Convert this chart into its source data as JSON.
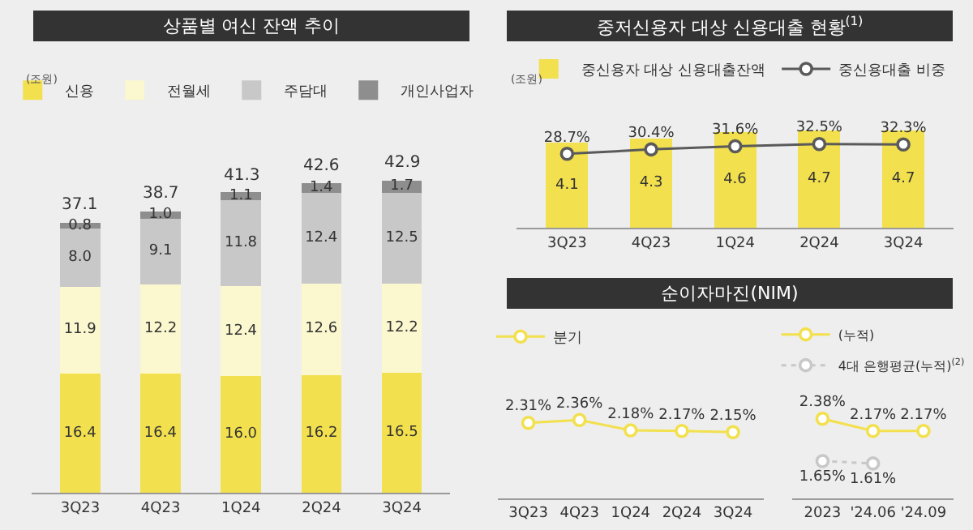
{
  "chart_data": [
    {
      "type": "bar",
      "title": "상품별 여신 잔액 추이",
      "ylabel": "(조원)",
      "stacked": true,
      "legend": "top",
      "tick_labels": "x",
      "categories": [
        "3Q23",
        "4Q23",
        "1Q24",
        "2Q24",
        "3Q24"
      ],
      "series": [
        {
          "name": "신용",
          "color": "#f2e04e",
          "values": [
            16.4,
            16.4,
            16.0,
            16.2,
            16.5
          ],
          "value_labels": [
            "16.4",
            "16.4",
            "16.0",
            "16.2",
            "16.5"
          ]
        },
        {
          "name": "전월세",
          "color": "#fbf7cf",
          "values": [
            11.9,
            12.2,
            12.4,
            12.6,
            12.2
          ],
          "value_labels": [
            "11.9",
            "12.2",
            "12.4",
            "12.6",
            "12.2"
          ]
        },
        {
          "name": "주담대",
          "color": "#c8c8c8",
          "values": [
            8.0,
            9.1,
            11.8,
            12.4,
            12.5
          ],
          "value_labels": [
            "8.0",
            "9.1",
            "11.8",
            "12.4",
            "12.5"
          ]
        },
        {
          "name": "개인사업자",
          "color": "#8e8e8e",
          "values": [
            0.8,
            1.0,
            1.1,
            1.4,
            1.7
          ],
          "value_labels": [
            "0.8",
            "1.0",
            "1.1",
            "1.4",
            "1.7"
          ]
        }
      ],
      "totals": [
        "37.1",
        "38.7",
        "41.3",
        "42.6",
        "42.9"
      ]
    },
    {
      "type": "bar",
      "title": "중저신용자 대상 신용대출 현황$^{(1)}$",
      "ylabel": "(조원)",
      "legend": "top",
      "tick_labels": "x",
      "marker": "circle",
      "categories": [
        "3Q23",
        "4Q23",
        "1Q24",
        "2Q24",
        "3Q24"
      ],
      "series": [
        {
          "name": "중신용자 대상 신용대출잔액",
          "color": "#f2e04e",
          "values": [
            4.1,
            4.3,
            4.6,
            4.7,
            4.7
          ],
          "value_labels": [
            "4.1",
            "4.3",
            "4.6",
            "4.7",
            "4.7"
          ]
        },
        {
          "name": "중신용대출 비중",
          "type": "line",
          "axis": "y2",
          "color": "#5a5a5a",
          "values": [
            28.7,
            30.4,
            31.6,
            32.5,
            32.3
          ],
          "value_labels": [
            "28.7%",
            "30.4%",
            "31.6%",
            "32.5%",
            "32.3%"
          ]
        }
      ]
    },
    {
      "type": "line",
      "title": "순이자마진(NIM)",
      "legend": "top left",
      "tick_labels": "x",
      "marker": "circle",
      "categories": [
        "3Q23",
        "4Q23",
        "1Q24",
        "2Q24",
        "3Q24"
      ],
      "series": [
        {
          "name": "분기",
          "color": "#f2e04e",
          "values": [
            2.31,
            2.36,
            2.18,
            2.17,
            2.15
          ],
          "value_labels": [
            "2.31%",
            "2.36%",
            "2.18%",
            "2.17%",
            "2.15%"
          ]
        }
      ]
    },
    {
      "type": "line",
      "legend": "top",
      "tick_labels": "x",
      "marker": "circle",
      "categories": [
        "2023",
        "'24.06",
        "'24.09"
      ],
      "series": [
        {
          "name": "(누적)",
          "color": "#f2e04e",
          "line_style": "solid",
          "values": [
            2.38,
            2.17,
            2.17
          ],
          "value_labels": [
            "2.38%",
            "2.17%",
            "2.17%"
          ]
        },
        {
          "name": "4대 은행평균(누적)$^{(2)}$",
          "color": "#c8c8c8",
          "line_style": "dotted",
          "values": [
            1.65,
            1.61,
            null
          ],
          "value_labels": [
            "1.65%",
            "1.61%",
            null
          ]
        }
      ]
    }
  ]
}
